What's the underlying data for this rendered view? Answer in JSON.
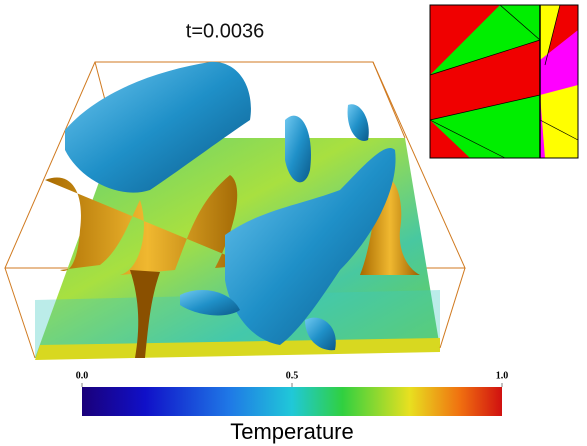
{
  "title": "t=0.0036",
  "colorbar": {
    "label": "Temperature",
    "range": [
      0,
      1
    ],
    "ticks": [
      {
        "value": 0,
        "label": "0.0"
      },
      {
        "value": 0.5,
        "label": "0.5"
      },
      {
        "value": 1,
        "label": "1.0"
      }
    ]
  }
}
